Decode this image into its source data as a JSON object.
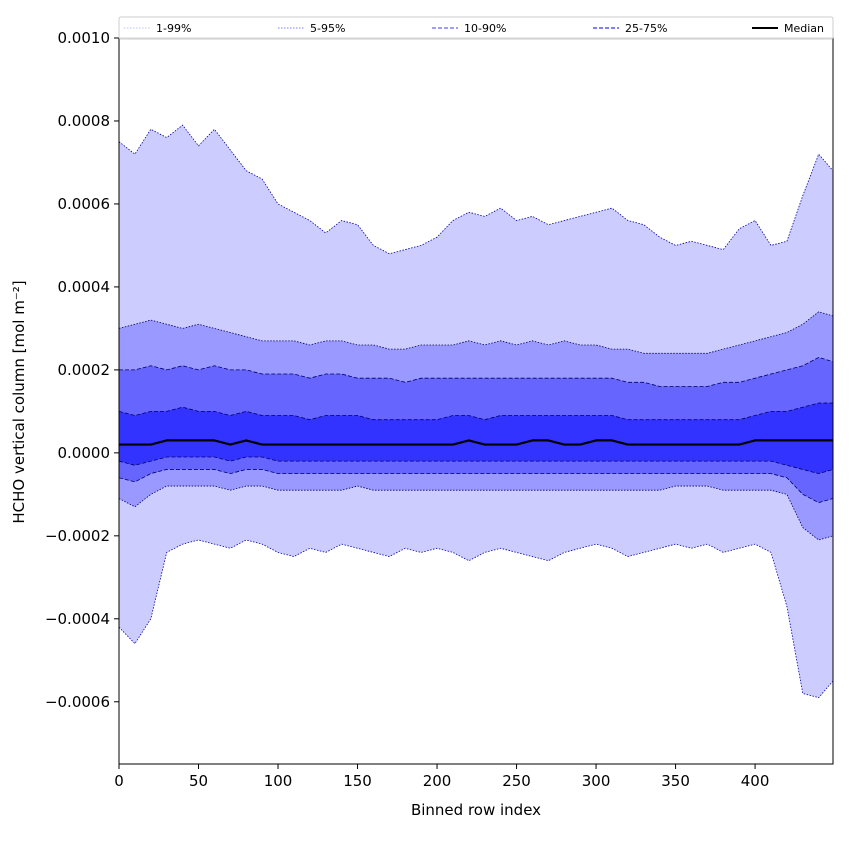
{
  "chart_data": {
    "type": "area",
    "title": "",
    "xlabel": "Binned row index",
    "ylabel": "HCHO vertical column [mol m⁻²]",
    "xlim": [
      0,
      449
    ],
    "ylim": [
      -0.00075,
      0.001
    ],
    "grid": false,
    "legend_placement": "top (spanning full width, single row)",
    "x_ticks": [
      0,
      50,
      100,
      150,
      200,
      250,
      300,
      350,
      400
    ],
    "x_tick_labels": [
      "0",
      "50",
      "100",
      "150",
      "200",
      "250",
      "300",
      "350",
      "400"
    ],
    "y_ticks": [
      -0.0006,
      -0.0004,
      -0.0002,
      0.0,
      0.0002,
      0.0004,
      0.0006,
      0.0008,
      0.001
    ],
    "y_tick_labels": [
      "−0.0006",
      "−0.0004",
      "−0.0002",
      "0.0000",
      "0.0002",
      "0.0004",
      "0.0006",
      "0.0008",
      "0.0010"
    ],
    "legend": [
      {
        "label": "1-99%",
        "color": "#ccccff",
        "style": "dotted"
      },
      {
        "label": "5-95%",
        "color": "#9999ff",
        "style": "dotted"
      },
      {
        "label": "10-90%",
        "color": "#6666ff",
        "style": "dashed"
      },
      {
        "label": "25-75%",
        "color": "#3333ff",
        "style": "dashed"
      },
      {
        "label": "Median",
        "color": "#000000",
        "style": "solid"
      }
    ],
    "x": [
      0,
      10,
      20,
      30,
      40,
      50,
      60,
      70,
      80,
      90,
      100,
      110,
      120,
      130,
      140,
      150,
      160,
      170,
      180,
      190,
      200,
      210,
      220,
      230,
      240,
      250,
      260,
      270,
      280,
      290,
      300,
      310,
      320,
      330,
      340,
      350,
      360,
      370,
      380,
      390,
      400,
      410,
      420,
      430,
      440,
      449
    ],
    "series": [
      {
        "name": "1-99%",
        "color": "#ccccff",
        "upper": [
          0.00075,
          0.00072,
          0.00078,
          0.00076,
          0.00079,
          0.00074,
          0.00078,
          0.00073,
          0.00068,
          0.00066,
          0.0006,
          0.00058,
          0.00056,
          0.00053,
          0.00056,
          0.00055,
          0.0005,
          0.00048,
          0.00049,
          0.0005,
          0.00052,
          0.00056,
          0.00058,
          0.00057,
          0.00059,
          0.00056,
          0.00057,
          0.00055,
          0.00056,
          0.00057,
          0.00058,
          0.00059,
          0.00056,
          0.00055,
          0.00052,
          0.0005,
          0.00051,
          0.0005,
          0.00049,
          0.00054,
          0.00056,
          0.0005,
          0.00051,
          0.00062,
          0.00072,
          0.00068
        ],
        "lower": [
          -0.00042,
          -0.00046,
          -0.0004,
          -0.00024,
          -0.00022,
          -0.00021,
          -0.00022,
          -0.00023,
          -0.00021,
          -0.00022,
          -0.00024,
          -0.00025,
          -0.00023,
          -0.00024,
          -0.00022,
          -0.00023,
          -0.00024,
          -0.00025,
          -0.00023,
          -0.00024,
          -0.00023,
          -0.00024,
          -0.00026,
          -0.00024,
          -0.00023,
          -0.00024,
          -0.00025,
          -0.00026,
          -0.00024,
          -0.00023,
          -0.00022,
          -0.00023,
          -0.00025,
          -0.00024,
          -0.00023,
          -0.00022,
          -0.00023,
          -0.00022,
          -0.00024,
          -0.00023,
          -0.00022,
          -0.00024,
          -0.00037,
          -0.00058,
          -0.00059,
          -0.00055
        ]
      },
      {
        "name": "5-95%",
        "color": "#9999ff",
        "upper": [
          0.0003,
          0.00031,
          0.00032,
          0.00031,
          0.0003,
          0.00031,
          0.0003,
          0.00029,
          0.00028,
          0.00027,
          0.00027,
          0.00027,
          0.00026,
          0.00027,
          0.00027,
          0.00026,
          0.00026,
          0.00025,
          0.00025,
          0.00026,
          0.00026,
          0.00026,
          0.00027,
          0.00026,
          0.00027,
          0.00026,
          0.00027,
          0.00026,
          0.00027,
          0.00026,
          0.00026,
          0.00025,
          0.00025,
          0.00024,
          0.00024,
          0.00024,
          0.00024,
          0.00024,
          0.00025,
          0.00026,
          0.00027,
          0.00028,
          0.00029,
          0.00031,
          0.00034,
          0.00033
        ],
        "lower": [
          -0.00011,
          -0.00013,
          -0.0001,
          -8e-05,
          -8e-05,
          -8e-05,
          -8e-05,
          -9e-05,
          -8e-05,
          -8e-05,
          -9e-05,
          -9e-05,
          -9e-05,
          -9e-05,
          -9e-05,
          -8e-05,
          -9e-05,
          -9e-05,
          -9e-05,
          -9e-05,
          -9e-05,
          -9e-05,
          -9e-05,
          -9e-05,
          -9e-05,
          -9e-05,
          -9e-05,
          -9e-05,
          -9e-05,
          -9e-05,
          -9e-05,
          -9e-05,
          -9e-05,
          -9e-05,
          -9e-05,
          -8e-05,
          -8e-05,
          -8e-05,
          -9e-05,
          -9e-05,
          -9e-05,
          -9e-05,
          -0.0001,
          -0.00018,
          -0.00021,
          -0.0002
        ]
      },
      {
        "name": "10-90%",
        "color": "#6666ff",
        "upper": [
          0.0002,
          0.0002,
          0.00021,
          0.0002,
          0.00021,
          0.0002,
          0.00021,
          0.0002,
          0.0002,
          0.00019,
          0.00019,
          0.00019,
          0.00018,
          0.00019,
          0.00019,
          0.00018,
          0.00018,
          0.00018,
          0.00017,
          0.00018,
          0.00018,
          0.00018,
          0.00018,
          0.00018,
          0.00018,
          0.00018,
          0.00018,
          0.00018,
          0.00018,
          0.00018,
          0.00018,
          0.00018,
          0.00017,
          0.00017,
          0.00016,
          0.00016,
          0.00016,
          0.00016,
          0.00017,
          0.00017,
          0.00018,
          0.00019,
          0.0002,
          0.00021,
          0.00023,
          0.00022
        ],
        "lower": [
          -6e-05,
          -7e-05,
          -5e-05,
          -4e-05,
          -4e-05,
          -4e-05,
          -4e-05,
          -5e-05,
          -4e-05,
          -4e-05,
          -5e-05,
          -5e-05,
          -5e-05,
          -5e-05,
          -5e-05,
          -5e-05,
          -5e-05,
          -5e-05,
          -5e-05,
          -5e-05,
          -5e-05,
          -5e-05,
          -5e-05,
          -5e-05,
          -5e-05,
          -5e-05,
          -5e-05,
          -5e-05,
          -5e-05,
          -5e-05,
          -5e-05,
          -5e-05,
          -5e-05,
          -5e-05,
          -5e-05,
          -5e-05,
          -5e-05,
          -5e-05,
          -5e-05,
          -5e-05,
          -5e-05,
          -5e-05,
          -6e-05,
          -0.0001,
          -0.00012,
          -0.00011
        ]
      },
      {
        "name": "25-75%",
        "color": "#3333ff",
        "upper": [
          0.0001,
          9e-05,
          0.0001,
          0.0001,
          0.00011,
          0.0001,
          0.0001,
          9e-05,
          0.0001,
          9e-05,
          9e-05,
          9e-05,
          8e-05,
          9e-05,
          9e-05,
          9e-05,
          8e-05,
          8e-05,
          8e-05,
          8e-05,
          8e-05,
          9e-05,
          9e-05,
          8e-05,
          9e-05,
          9e-05,
          9e-05,
          9e-05,
          9e-05,
          9e-05,
          9e-05,
          9e-05,
          8e-05,
          8e-05,
          8e-05,
          8e-05,
          8e-05,
          8e-05,
          8e-05,
          8e-05,
          9e-05,
          0.0001,
          0.0001,
          0.00011,
          0.00012,
          0.00012
        ],
        "lower": [
          -2e-05,
          -3e-05,
          -2e-05,
          -1e-05,
          -1e-05,
          -1e-05,
          -1e-05,
          -2e-05,
          -1e-05,
          -1e-05,
          -2e-05,
          -2e-05,
          -2e-05,
          -2e-05,
          -2e-05,
          -2e-05,
          -2e-05,
          -2e-05,
          -2e-05,
          -2e-05,
          -2e-05,
          -2e-05,
          -2e-05,
          -2e-05,
          -2e-05,
          -2e-05,
          -2e-05,
          -2e-05,
          -2e-05,
          -2e-05,
          -2e-05,
          -2e-05,
          -2e-05,
          -2e-05,
          -2e-05,
          -2e-05,
          -2e-05,
          -2e-05,
          -2e-05,
          -2e-05,
          -2e-05,
          -2e-05,
          -3e-05,
          -4e-05,
          -5e-05,
          -4e-05
        ]
      },
      {
        "name": "Median",
        "color": "#000000",
        "values": [
          2e-05,
          2e-05,
          2e-05,
          3e-05,
          3e-05,
          3e-05,
          3e-05,
          2e-05,
          3e-05,
          2e-05,
          2e-05,
          2e-05,
          2e-05,
          2e-05,
          2e-05,
          2e-05,
          2e-05,
          2e-05,
          2e-05,
          2e-05,
          2e-05,
          2e-05,
          3e-05,
          2e-05,
          2e-05,
          2e-05,
          3e-05,
          3e-05,
          2e-05,
          2e-05,
          3e-05,
          3e-05,
          2e-05,
          2e-05,
          2e-05,
          2e-05,
          2e-05,
          2e-05,
          2e-05,
          2e-05,
          3e-05,
          3e-05,
          3e-05,
          3e-05,
          3e-05,
          3e-05
        ]
      }
    ]
  }
}
